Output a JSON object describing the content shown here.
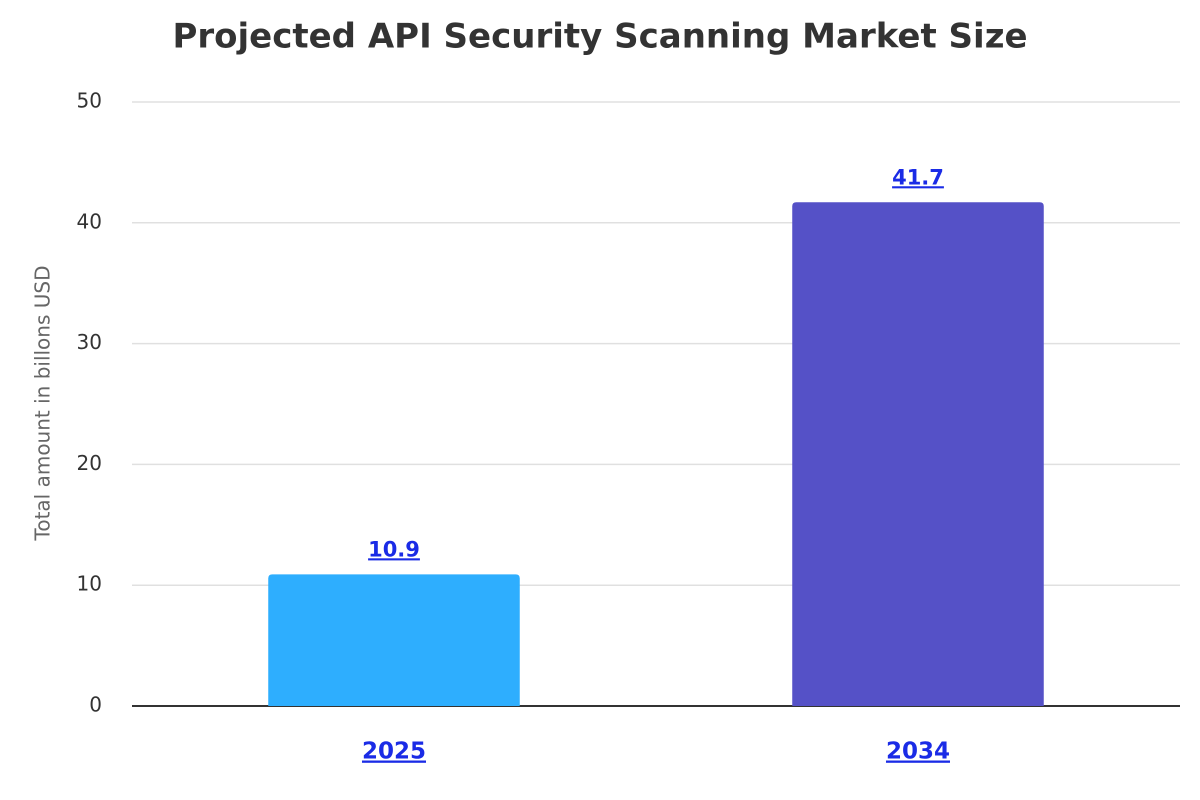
{
  "chart_data": {
    "type": "bar",
    "title": "Projected API Security Scanning Market Size",
    "y_label": "Total amount in billons USD",
    "categories": [
      "2025",
      "2034"
    ],
    "values": [
      10.9,
      41.7
    ],
    "colors": [
      "#2eaefe",
      "#5551c7"
    ],
    "ylim": [
      0,
      50
    ],
    "yticks": [
      0,
      10,
      20,
      30,
      40,
      50
    ],
    "grid": true
  }
}
